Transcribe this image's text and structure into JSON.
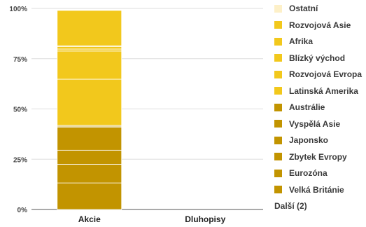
{
  "chart_data": {
    "type": "bar",
    "stacked": true,
    "categories": [
      "Akcie",
      "Dluhopisy"
    ],
    "ylim": [
      0,
      100
    ],
    "yticks": [
      "0%",
      "25%",
      "50%",
      "75%",
      "100%"
    ],
    "series": [
      {
        "name": "Velká Británie",
        "color": "#c29400",
        "values": [
          13.2,
          0
        ]
      },
      {
        "name": "Eurozóna",
        "color": "#c29400",
        "values": [
          9.3,
          0
        ]
      },
      {
        "name": "Zbytek Evropy",
        "color": "#c29400",
        "values": [
          7.0,
          0
        ]
      },
      {
        "name": "Japonsko",
        "color": "#c29400",
        "values": [
          11.4,
          0
        ]
      },
      {
        "name": "Vyspělá Asie",
        "color": "#c29400",
        "values": [
          0.5,
          0
        ]
      },
      {
        "name": "Austrálie",
        "color": "#c29400",
        "values": [
          0.4,
          0
        ]
      },
      {
        "name": "Latinská Amerika",
        "color": "#f2c81c",
        "values": [
          23.0,
          0
        ]
      },
      {
        "name": "Blízký východ",
        "color": "#f2c81c",
        "values": [
          14.0,
          0
        ]
      },
      {
        "name": "Rozvojová Evropa",
        "color": "#f2c81c",
        "values": [
          1.0,
          0
        ]
      },
      {
        "name": "Afrika",
        "color": "#f2c81c",
        "values": [
          1.2,
          0
        ]
      },
      {
        "name": "Rozvojová Asie",
        "color": "#f2c81c",
        "values": [
          0.5,
          0
        ]
      },
      {
        "name": "Ostatní",
        "color": "#f2c81c",
        "values": [
          17.5,
          0
        ]
      }
    ],
    "legend_position": "right",
    "grid": true
  },
  "legend": {
    "items": [
      {
        "label": "Ostatní",
        "color": "#fdf0c8"
      },
      {
        "label": "Rozvojová Asie",
        "color": "#f2c81c"
      },
      {
        "label": "Afrika",
        "color": "#f2c81c"
      },
      {
        "label": "Blízký východ",
        "color": "#f2c81c"
      },
      {
        "label": "Rozvojová Evropa",
        "color": "#f2c81c"
      },
      {
        "label": "Latinská Amerika",
        "color": "#f2c81c"
      },
      {
        "label": "Austrálie",
        "color": "#c29400"
      },
      {
        "label": "Vyspělá Asie",
        "color": "#c29400"
      },
      {
        "label": "Japonsko",
        "color": "#c29400"
      },
      {
        "label": "Zbytek Evropy",
        "color": "#c29400"
      },
      {
        "label": "Eurozóna",
        "color": "#c29400"
      },
      {
        "label": "Velká Británie",
        "color": "#c29400"
      }
    ],
    "more_label": "Další (2)"
  }
}
